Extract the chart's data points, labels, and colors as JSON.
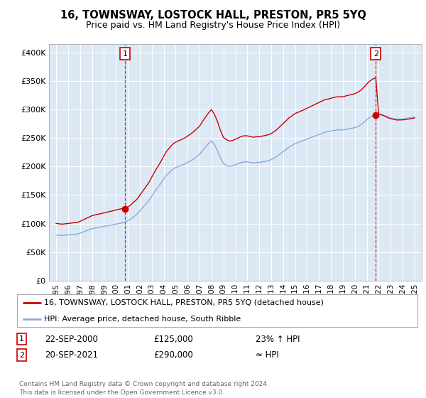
{
  "title": "16, TOWNSWAY, LOSTOCK HALL, PRESTON, PR5 5YQ",
  "subtitle": "Price paid vs. HM Land Registry's House Price Index (HPI)",
  "legend_entry1": "16, TOWNSWAY, LOSTOCK HALL, PRESTON, PR5 5YQ (detached house)",
  "legend_entry2": "HPI: Average price, detached house, South Ribble",
  "annotation1_date": "22-SEP-2000",
  "annotation1_price": "£125,000",
  "annotation1_hpi": "23% ↑ HPI",
  "annotation2_date": "20-SEP-2021",
  "annotation2_price": "£290,000",
  "annotation2_hpi": "≈ HPI",
  "footer": "Contains HM Land Registry data © Crown copyright and database right 2024.\nThis data is licensed under the Open Government Licence v3.0.",
  "yticks": [
    0,
    50000,
    100000,
    150000,
    200000,
    250000,
    300000,
    350000,
    400000
  ],
  "ylabel_fmt": [
    "£0",
    "£50K",
    "£100K",
    "£150K",
    "£200K",
    "£250K",
    "£300K",
    "£350K",
    "£400K"
  ],
  "background_color": "#dce9f5",
  "line1_color": "#cc0000",
  "line2_color": "#88aadd",
  "vline_color": "#cc0000",
  "box_color": "#cc0000",
  "sale1_year": 2000.75,
  "sale1_price": 125000,
  "sale2_year": 2021.75,
  "sale2_price": 290000,
  "hpi_years": [
    1995.0,
    1995.25,
    1995.5,
    1995.75,
    1996.0,
    1996.25,
    1996.5,
    1996.75,
    1997.0,
    1997.25,
    1997.5,
    1997.75,
    1998.0,
    1998.25,
    1998.5,
    1998.75,
    1999.0,
    1999.25,
    1999.5,
    1999.75,
    2000.0,
    2000.25,
    2000.5,
    2000.75,
    2001.0,
    2001.25,
    2001.5,
    2001.75,
    2002.0,
    2002.25,
    2002.5,
    2002.75,
    2003.0,
    2003.25,
    2003.5,
    2003.75,
    2004.0,
    2004.25,
    2004.5,
    2004.75,
    2005.0,
    2005.25,
    2005.5,
    2005.75,
    2006.0,
    2006.25,
    2006.5,
    2006.75,
    2007.0,
    2007.25,
    2007.5,
    2007.75,
    2008.0,
    2008.25,
    2008.5,
    2008.75,
    2009.0,
    2009.25,
    2009.5,
    2009.75,
    2010.0,
    2010.25,
    2010.5,
    2010.75,
    2011.0,
    2011.25,
    2011.5,
    2011.75,
    2012.0,
    2012.25,
    2012.5,
    2012.75,
    2013.0,
    2013.25,
    2013.5,
    2013.75,
    2014.0,
    2014.25,
    2014.5,
    2014.75,
    2015.0,
    2015.25,
    2015.5,
    2015.75,
    2016.0,
    2016.25,
    2016.5,
    2016.75,
    2017.0,
    2017.25,
    2017.5,
    2017.75,
    2018.0,
    2018.25,
    2018.5,
    2018.75,
    2019.0,
    2019.25,
    2019.5,
    2019.75,
    2020.0,
    2020.25,
    2020.5,
    2020.75,
    2021.0,
    2021.25,
    2021.5,
    2021.75,
    2022.0,
    2022.25,
    2022.5,
    2022.75,
    2023.0,
    2023.25,
    2023.5,
    2023.75,
    2024.0,
    2024.25,
    2024.5,
    2024.75,
    2025.0
  ],
  "hpi_values": [
    80000,
    79500,
    79000,
    79500,
    80000,
    80500,
    81000,
    81500,
    83000,
    85000,
    87000,
    89000,
    91000,
    92000,
    93000,
    94000,
    95000,
    96000,
    97000,
    98000,
    99000,
    100000,
    101000,
    102000,
    105000,
    108000,
    112000,
    116000,
    122000,
    128000,
    134000,
    140000,
    148000,
    156000,
    163000,
    170000,
    178000,
    185000,
    190000,
    195000,
    198000,
    200000,
    202000,
    204000,
    207000,
    210000,
    213000,
    217000,
    221000,
    228000,
    234000,
    240000,
    245000,
    238000,
    228000,
    215000,
    205000,
    202000,
    200000,
    201000,
    203000,
    205000,
    207000,
    208000,
    208000,
    207000,
    206000,
    207000,
    207000,
    208000,
    209000,
    210000,
    212000,
    215000,
    218000,
    222000,
    226000,
    230000,
    234000,
    237000,
    240000,
    242000,
    244000,
    246000,
    248000,
    250000,
    252000,
    254000,
    256000,
    258000,
    260000,
    261000,
    262000,
    263000,
    264000,
    264000,
    264000,
    265000,
    266000,
    267000,
    268000,
    270000,
    273000,
    277000,
    282000,
    286000,
    289000,
    291000,
    292000,
    291000,
    289000,
    287000,
    285000,
    284000,
    283000,
    283000,
    283000,
    284000,
    285000,
    286000,
    287000
  ]
}
